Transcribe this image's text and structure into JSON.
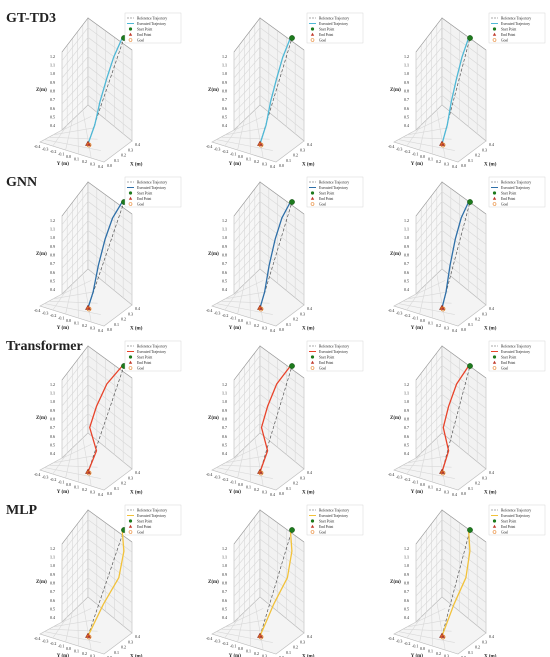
{
  "figure": {
    "rows": [
      {
        "title": "GT-TD3",
        "color": "#4fb8d6"
      },
      {
        "title": "GNN",
        "color": "#2e6fa8"
      },
      {
        "title": "Transformer",
        "color": "#e8432a"
      },
      {
        "title": "MLP",
        "color": "#f2c23a"
      }
    ],
    "legend": {
      "reference": "Reference Trajectory",
      "executed": "Executed Trajectory",
      "start": "Start Point",
      "end": "End Point",
      "goal": "Goal"
    },
    "axes": {
      "xlabel": "X (m)",
      "ylabel": "Y (m)",
      "zlabel": "Z(m)",
      "z_ticks": [
        "0.4",
        "0.5",
        "0.6",
        "0.7",
        "0.8",
        "0.9",
        "1.0",
        "1.1",
        "1.2"
      ],
      "y_ticks": [
        "-0.4",
        "-0.3",
        "-0.2",
        "-0.1",
        "0.0",
        "0.1",
        "0.2",
        "0.3",
        "0.4"
      ],
      "x_ticks": [
        "0.0",
        "0.1",
        "0.2",
        "0.3",
        "0.4"
      ]
    },
    "colors": {
      "reference": "#555555",
      "start": "#1d7a1d",
      "end": "#c0392b",
      "goal": "#e67e22",
      "grid": "#d8d8d8"
    }
  },
  "chart_data": [
    {
      "type": "line",
      "row": 0,
      "col": 0,
      "zlim": [
        0.4,
        1.2
      ]
    },
    {
      "type": "line",
      "row": 0,
      "col": 1,
      "zlim": [
        0.4,
        1.2
      ]
    },
    {
      "type": "line",
      "row": 0,
      "col": 2,
      "zlim": [
        0.4,
        1.2
      ]
    },
    {
      "type": "line",
      "row": 1,
      "col": 0,
      "zlim": [
        0.4,
        1.2
      ]
    },
    {
      "type": "line",
      "row": 1,
      "col": 1,
      "zlim": [
        0.4,
        1.2
      ]
    },
    {
      "type": "line",
      "row": 1,
      "col": 2,
      "zlim": [
        0.4,
        1.2
      ]
    },
    {
      "type": "line",
      "row": 2,
      "col": 0,
      "zlim": [
        0.4,
        1.2
      ]
    },
    {
      "type": "line",
      "row": 2,
      "col": 1,
      "zlim": [
        0.4,
        1.2
      ]
    },
    {
      "type": "line",
      "row": 2,
      "col": 2,
      "zlim": [
        0.4,
        1.2
      ]
    },
    {
      "type": "line",
      "row": 3,
      "col": 0,
      "zlim": [
        0.4,
        1.2
      ]
    },
    {
      "type": "line",
      "row": 3,
      "col": 1,
      "zlim": [
        0.4,
        1.2
      ]
    },
    {
      "type": "line",
      "row": 3,
      "col": 2,
      "zlim": [
        0.4,
        1.2
      ]
    }
  ]
}
